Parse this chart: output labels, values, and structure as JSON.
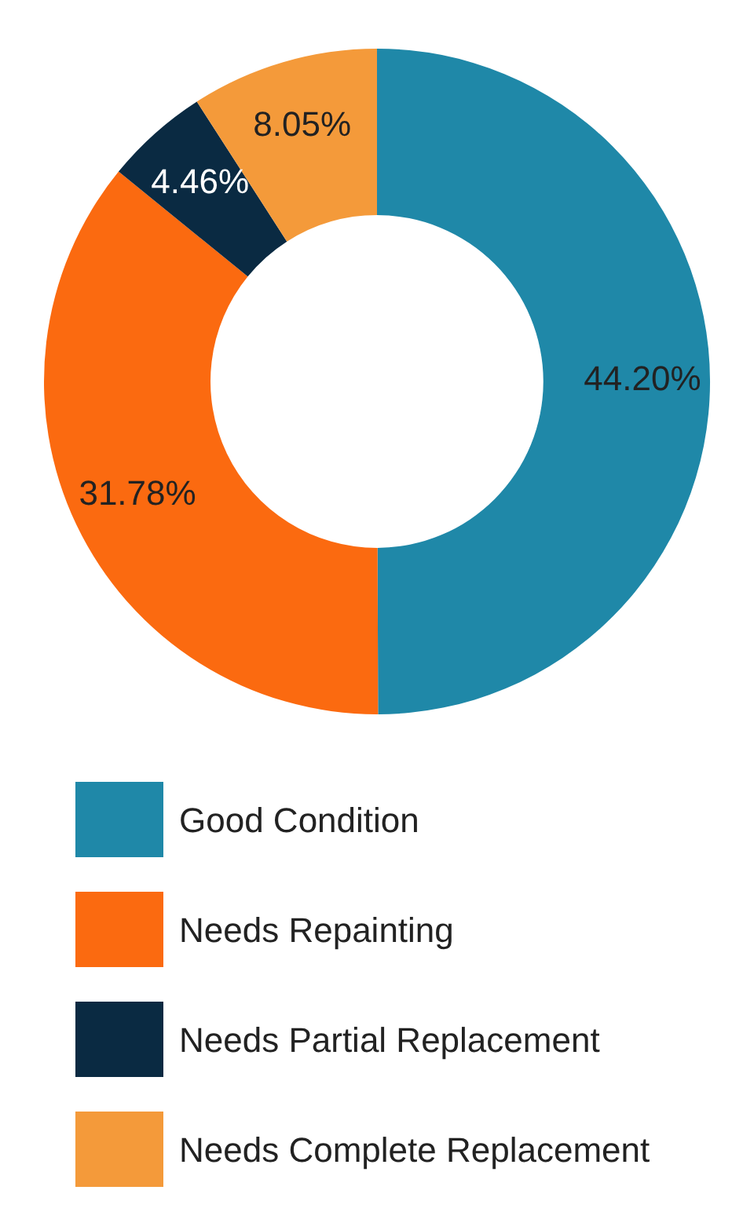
{
  "chart_data": {
    "type": "donut",
    "categories": [
      "Good Condition",
      "Needs Repainting",
      "Needs Partial Replacement",
      "Needs Complete Replacement"
    ],
    "values": [
      44.2,
      31.78,
      4.46,
      8.05
    ],
    "value_labels": [
      "44.20%",
      "31.78%",
      "4.46%",
      "8.05%"
    ],
    "colors": [
      "#1f88a8",
      "#fb6a10",
      "#0a2a42",
      "#f49a3a"
    ],
    "legend": "bottom"
  }
}
